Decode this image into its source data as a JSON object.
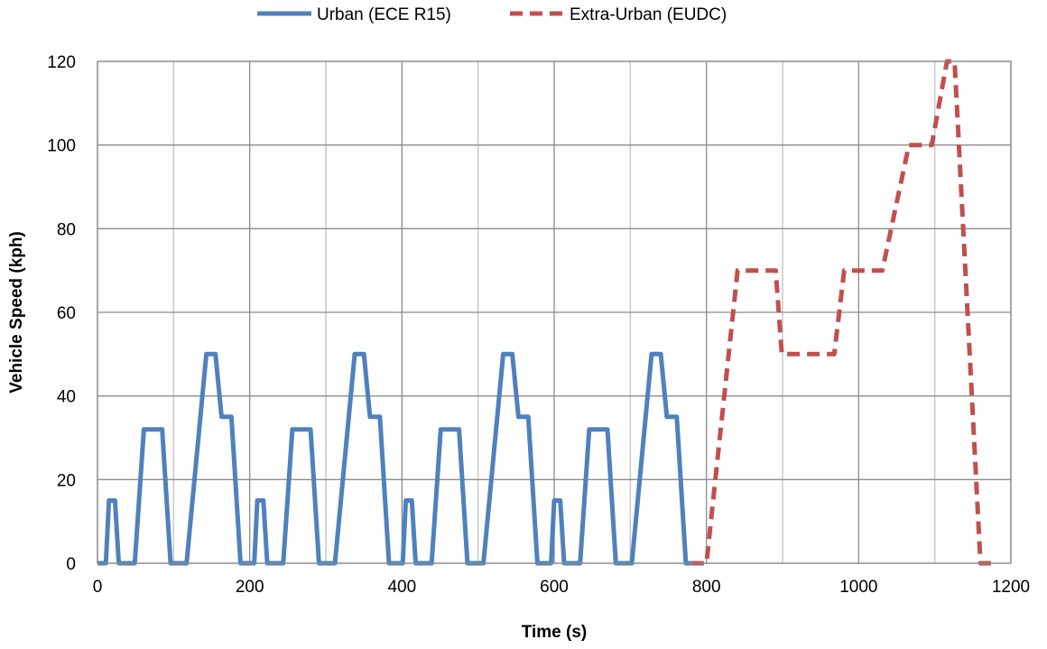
{
  "chart_data": {
    "type": "line",
    "title": "",
    "xlabel": "Time (s)",
    "ylabel": "Vehicle Speed (kph)",
    "xlim": [
      0,
      1200
    ],
    "ylim": [
      0,
      120
    ],
    "xticks": [
      0,
      200,
      400,
      600,
      800,
      1000,
      1200
    ],
    "yticks": [
      0,
      20,
      40,
      60,
      80,
      100,
      120
    ],
    "grid": true,
    "legend": "top-center",
    "series": [
      {
        "name": "Urban (ECE R15)",
        "color": "#4f81bd",
        "style": "solid",
        "x": [
          0,
          11,
          15,
          23,
          28,
          49,
          61,
          85,
          96,
          117,
          143,
          155,
          163,
          176,
          188,
          195,
          206,
          210,
          218,
          223,
          244,
          256,
          280,
          291,
          312,
          338,
          350,
          358,
          371,
          383,
          390,
          401,
          405,
          413,
          418,
          439,
          451,
          475,
          486,
          507,
          533,
          545,
          553,
          566,
          578,
          585,
          596,
          600,
          608,
          613,
          634,
          646,
          670,
          681,
          702,
          728,
          740,
          748,
          761,
          773,
          780
        ],
        "y": [
          0,
          0,
          15,
          15,
          0,
          0,
          32,
          32,
          0,
          0,
          50,
          50,
          35,
          35,
          0,
          0,
          0,
          15,
          15,
          0,
          0,
          32,
          32,
          0,
          0,
          50,
          50,
          35,
          35,
          0,
          0,
          0,
          15,
          15,
          0,
          0,
          32,
          32,
          0,
          0,
          50,
          50,
          35,
          35,
          0,
          0,
          0,
          15,
          15,
          0,
          0,
          32,
          32,
          0,
          0,
          50,
          50,
          35,
          35,
          0,
          0
        ]
      },
      {
        "name": "Extra-Urban (EUDC)",
        "color": "#c0504d",
        "style": "dashed",
        "x": [
          780,
          800,
          841,
          891,
          899,
          968,
          981,
          1031,
          1066,
          1096,
          1116,
          1126,
          1160,
          1180
        ],
        "y": [
          0,
          0,
          70,
          70,
          50,
          50,
          70,
          70,
          100,
          100,
          120,
          120,
          0,
          0
        ]
      }
    ]
  }
}
